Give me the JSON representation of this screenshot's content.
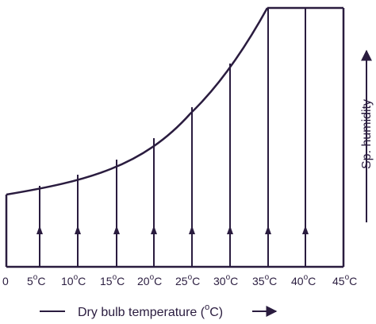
{
  "diagram": {
    "x_ticks": [
      "0",
      "5",
      "10",
      "15",
      "20",
      "25",
      "30",
      "35",
      "40",
      "45"
    ],
    "degree_symbol": "o",
    "unit_letter": "C",
    "x_axis": {
      "prefix": "Dry bulb temperature (",
      "suffix": "C)"
    },
    "y_axis_label": "Sp. humidity",
    "line_color": "#2a1c3f"
  }
}
